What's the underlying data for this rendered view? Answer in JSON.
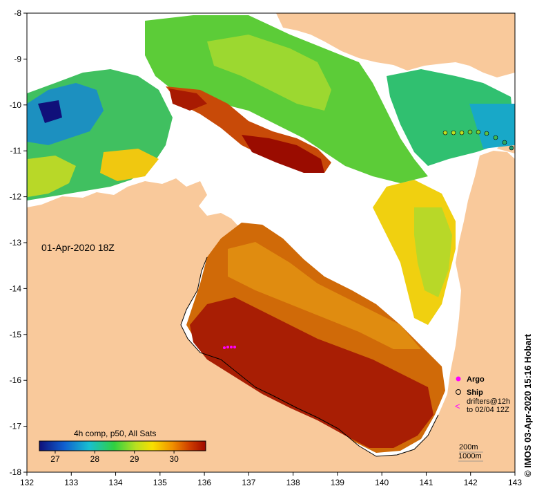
{
  "timestamp_label": "01-Apr-2020 18Z",
  "credit": "© IMOS 03-Apr-2020 15:16 Hobart",
  "colorbar": {
    "title": "4h comp, p50, All Sats",
    "ticks": [
      "27",
      "28",
      "29",
      "30"
    ],
    "tick_values": [
      27,
      28,
      29,
      30
    ],
    "range": [
      26.6,
      30.8
    ]
  },
  "axes": {
    "longitude_ticks": [
      "132",
      "133",
      "134",
      "135",
      "136",
      "137",
      "138",
      "139",
      "140",
      "141",
      "142",
      "143"
    ],
    "latitude_ticks": [
      "-8",
      "-9",
      "-10",
      "-11",
      "-12",
      "-13",
      "-14",
      "-15",
      "-16",
      "-17",
      "-18"
    ]
  },
  "legend": {
    "argo_label": "Argo",
    "ship_label": "Ship",
    "drifters_line1": "drifters@12h",
    "drifters_line2": "to 02/04 12Z",
    "contour_200": "200m",
    "contour_1000": "1000m"
  },
  "colors": {
    "land": "#f9c99b",
    "no_data": "#ffffff",
    "argo": "#ff00ff",
    "cold": "#1a3fa0",
    "warm": "#a50f00"
  }
}
